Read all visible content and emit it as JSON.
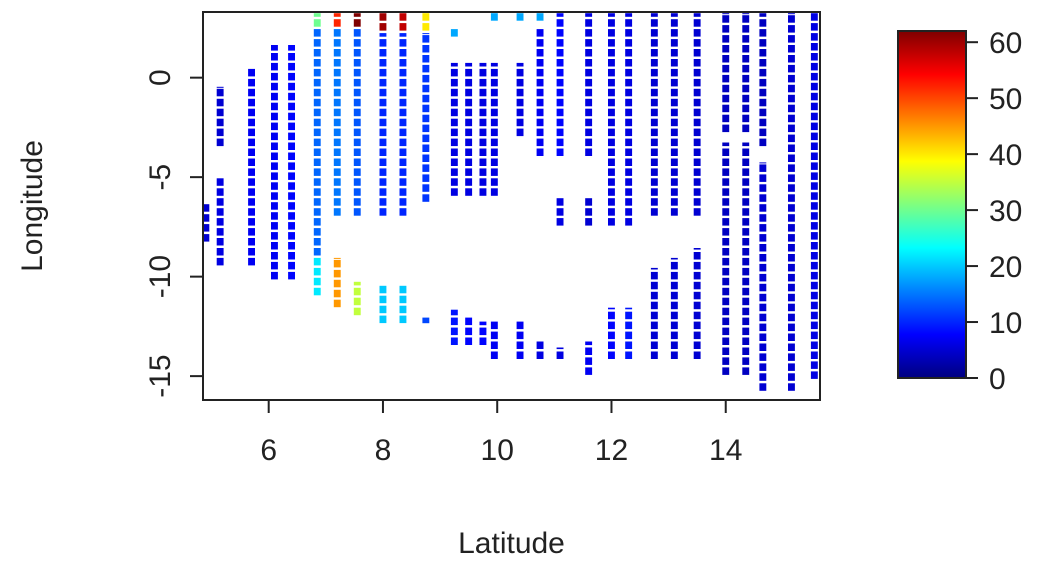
{
  "chart_data": {
    "type": "heatmap",
    "title": "",
    "xlabel": "Latitude",
    "ylabel": "Longitude",
    "xlim": [
      4.85,
      15.65
    ],
    "ylim": [
      -16.2,
      3.3
    ],
    "x_ticks": [
      6,
      8,
      10,
      12,
      14
    ],
    "x_tick_labels": [
      "6",
      "8",
      "10",
      "12",
      "14"
    ],
    "y_ticks": [
      0,
      -5,
      -10,
      -15
    ],
    "y_tick_labels": [
      "0",
      "-5",
      "-10",
      "-15"
    ],
    "grid": false,
    "legend": "right",
    "colorbar": {
      "range": [
        0,
        62
      ],
      "ticks": [
        0,
        10,
        20,
        30,
        40,
        50,
        60
      ],
      "tick_labels": [
        "0",
        "10",
        "20",
        "30",
        "40",
        "50",
        "60"
      ],
      "colors": [
        "#00007F",
        "#0000FF",
        "#007FFF",
        "#00FFFF",
        "#7FFF7F",
        "#FFFF00",
        "#FF7F00",
        "#FF0000",
        "#7F0000"
      ]
    },
    "cell_size": {
      "lat": 0.12,
      "lon": 0.5
    },
    "columns": [
      {
        "lat": 4.9,
        "segments": [
          [
            -8.3,
            -6.3,
            5
          ]
        ]
      },
      {
        "lat": 5.15,
        "segments": [
          [
            -9.5,
            -5.0,
            6
          ],
          [
            -3.5,
            -0.4,
            5
          ]
        ]
      },
      {
        "lat": 5.7,
        "segments": [
          [
            -9.5,
            0.5,
            7
          ]
        ]
      },
      {
        "lat": 6.1,
        "segments": [
          [
            -10.2,
            1.7,
            7
          ]
        ]
      },
      {
        "lat": 6.4,
        "segments": [
          [
            -10.2,
            1.7,
            8
          ]
        ]
      },
      {
        "lat": 6.85,
        "segments": [
          [
            -11.0,
            -9.0,
            22
          ],
          [
            -9.0,
            2.5,
            14
          ],
          [
            2.5,
            3.3,
            30
          ]
        ]
      },
      {
        "lat": 7.2,
        "segments": [
          [
            -11.6,
            -9.0,
            45
          ],
          [
            -7.0,
            2.5,
            15
          ],
          [
            2.5,
            3.3,
            52
          ]
        ]
      },
      {
        "lat": 7.55,
        "segments": [
          [
            -12.0,
            -10.2,
            35
          ],
          [
            -7.0,
            2.5,
            13
          ],
          [
            2.5,
            3.3,
            62
          ]
        ]
      },
      {
        "lat": 8.0,
        "segments": [
          [
            -12.4,
            -10.4,
            20
          ],
          [
            -7.0,
            2.3,
            10
          ],
          [
            2.3,
            3.3,
            60
          ]
        ]
      },
      {
        "lat": 8.35,
        "segments": [
          [
            -12.4,
            -10.4,
            20
          ],
          [
            -7.0,
            2.3,
            10
          ],
          [
            2.3,
            3.3,
            58
          ]
        ]
      },
      {
        "lat": 8.75,
        "segments": [
          [
            -12.4,
            -12.0,
            12
          ],
          [
            -6.3,
            2.3,
            11
          ],
          [
            2.3,
            3.3,
            40
          ]
        ]
      },
      {
        "lat": 9.25,
        "segments": [
          [
            -13.5,
            -11.6,
            9
          ],
          [
            -6.0,
            0.8,
            6
          ],
          [
            2.0,
            2.5,
            18
          ]
        ]
      },
      {
        "lat": 9.5,
        "segments": [
          [
            -13.5,
            -12.0,
            8
          ],
          [
            -6.0,
            0.8,
            6
          ]
        ]
      },
      {
        "lat": 9.75,
        "segments": [
          [
            -13.5,
            -12.2,
            8
          ],
          [
            -6.0,
            0.8,
            6
          ]
        ]
      },
      {
        "lat": 9.95,
        "segments": [
          [
            -14.2,
            -12.2,
            7
          ],
          [
            -6.0,
            0.8,
            6
          ],
          [
            2.8,
            3.3,
            18
          ]
        ]
      },
      {
        "lat": 10.4,
        "segments": [
          [
            -14.2,
            -12.2,
            7
          ],
          [
            -3.0,
            0.8,
            6
          ],
          [
            2.8,
            3.3,
            18
          ]
        ]
      },
      {
        "lat": 10.75,
        "segments": [
          [
            -14.2,
            -13.2,
            6
          ],
          [
            -4.0,
            2.5,
            7
          ],
          [
            2.8,
            3.3,
            18
          ]
        ]
      },
      {
        "lat": 11.1,
        "segments": [
          [
            -14.2,
            -13.5,
            6
          ],
          [
            -7.5,
            -6.0,
            6
          ],
          [
            -4.0,
            3.3,
            8
          ]
        ]
      },
      {
        "lat": 11.6,
        "segments": [
          [
            -15.0,
            -13.2,
            7
          ],
          [
            -7.5,
            -6.0,
            5
          ],
          [
            -4.0,
            3.3,
            6
          ]
        ]
      },
      {
        "lat": 12.0,
        "segments": [
          [
            -14.2,
            -11.5,
            8
          ],
          [
            -7.5,
            3.3,
            6
          ]
        ]
      },
      {
        "lat": 12.3,
        "segments": [
          [
            -14.2,
            -11.5,
            9
          ],
          [
            -7.5,
            3.3,
            6
          ]
        ]
      },
      {
        "lat": 12.75,
        "segments": [
          [
            -14.2,
            -9.5,
            5
          ],
          [
            -7.0,
            3.3,
            5
          ]
        ]
      },
      {
        "lat": 13.1,
        "segments": [
          [
            -14.2,
            -9.0,
            5
          ],
          [
            -7.0,
            3.3,
            5
          ]
        ]
      },
      {
        "lat": 13.5,
        "segments": [
          [
            -14.2,
            -8.5,
            5
          ],
          [
            -7.0,
            3.3,
            5
          ]
        ]
      },
      {
        "lat": 14.0,
        "segments": [
          [
            -15.0,
            -3.2,
            4
          ],
          [
            -2.8,
            3.3,
            4
          ]
        ]
      },
      {
        "lat": 14.35,
        "segments": [
          [
            -15.0,
            -3.2,
            4
          ],
          [
            -2.8,
            3.3,
            4
          ]
        ]
      },
      {
        "lat": 14.65,
        "segments": [
          [
            -15.8,
            -4.2,
            5
          ],
          [
            -3.5,
            3.3,
            4
          ]
        ]
      },
      {
        "lat": 15.15,
        "segments": [
          [
            -15.8,
            3.3,
            5
          ]
        ]
      },
      {
        "lat": 15.55,
        "segments": [
          [
            -15.2,
            3.3,
            6
          ]
        ]
      }
    ]
  }
}
